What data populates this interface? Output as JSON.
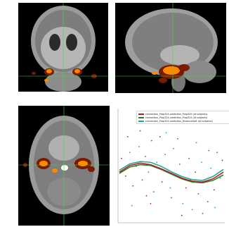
{
  "colors": {
    "series_red": "#b22222",
    "series_green": "#2e7d32",
    "series_teal": "#26a69a",
    "crosshair": "#3ddc3d",
    "activation_hot": "#ff8a00",
    "activation_dark": "#7a1a00"
  },
  "panels": {
    "coronal": {
      "label": "coronal brain slice with activation overlay"
    },
    "sagittal": {
      "label": "sagittal brain slice with activation overlay"
    },
    "axial": {
      "label": "axial brain slice with activation overlay"
    },
    "scatter": {
      "label": "scatter plot with fitted curves"
    }
  },
  "chart_data": {
    "type": "scatter",
    "title": "",
    "xlabel": "",
    "ylabel": "",
    "legend_position": "top-right",
    "series": [
      {
        "name": "connection_Prop324 prediction_Prop325 (all subjects)",
        "color_key": "series_red"
      },
      {
        "name": "connection_Prop324 prediction_Prop324 (all subjects)",
        "color_key": "series_green"
      },
      {
        "name": "connection_Prop324 prediction_DistanceSoft (all subjects)",
        "color_key": "series_teal"
      }
    ],
    "x": [
      0,
      1,
      2,
      3,
      4,
      5,
      6,
      7,
      8,
      9,
      10
    ],
    "fits": {
      "series_red": [
        0.05,
        0.22,
        0.28,
        0.24,
        0.14,
        0.02,
        -0.1,
        -0.18,
        -0.2,
        -0.12,
        0.05
      ],
      "series_green": [
        0.02,
        0.18,
        0.24,
        0.22,
        0.12,
        0.0,
        -0.12,
        -0.2,
        -0.22,
        -0.16,
        -0.02
      ],
      "series_teal": [
        0.1,
        0.26,
        0.32,
        0.3,
        0.2,
        0.06,
        -0.06,
        -0.14,
        -0.16,
        -0.06,
        0.12
      ]
    },
    "points": [
      [
        0.2,
        0.4
      ],
      [
        0.6,
        -0.05
      ],
      [
        1.0,
        0.55
      ],
      [
        1.3,
        -0.3
      ],
      [
        1.6,
        0.2
      ],
      [
        1.9,
        0.7
      ],
      [
        2.2,
        -0.15
      ],
      [
        2.5,
        0.45
      ],
      [
        2.8,
        0.05
      ],
      [
        3.1,
        0.85
      ],
      [
        3.3,
        -0.45
      ],
      [
        3.6,
        0.3
      ],
      [
        3.9,
        0.95
      ],
      [
        4.1,
        -0.2
      ],
      [
        4.4,
        0.5
      ],
      [
        4.7,
        0.1
      ],
      [
        5.0,
        -0.6
      ],
      [
        5.2,
        0.65
      ],
      [
        5.5,
        -0.05
      ],
      [
        5.8,
        0.25
      ],
      [
        6.1,
        -0.75
      ],
      [
        6.4,
        -0.35
      ],
      [
        6.7,
        0.4
      ],
      [
        7.0,
        -0.9
      ],
      [
        7.3,
        0.05
      ],
      [
        7.6,
        -0.5
      ],
      [
        7.9,
        0.3
      ],
      [
        8.2,
        -0.2
      ],
      [
        8.5,
        -0.7
      ],
      [
        8.8,
        0.15
      ],
      [
        9.1,
        -0.4
      ],
      [
        9.4,
        0.55
      ],
      [
        9.7,
        -0.1
      ],
      [
        9.9,
        0.35
      ],
      [
        2.0,
        1.1
      ],
      [
        4.5,
        1.05
      ],
      [
        6.0,
        -1.05
      ],
      [
        8.0,
        -1.0
      ],
      [
        1.2,
        -0.8
      ],
      [
        3.0,
        -0.75
      ],
      [
        5.6,
        0.9
      ],
      [
        7.4,
        0.8
      ],
      [
        0.8,
        0.95
      ],
      [
        6.8,
        -0.15
      ],
      [
        4.9,
        -0.35
      ],
      [
        2.6,
        -0.55
      ],
      [
        8.6,
        0.6
      ],
      [
        9.2,
        -0.85
      ]
    ]
  }
}
